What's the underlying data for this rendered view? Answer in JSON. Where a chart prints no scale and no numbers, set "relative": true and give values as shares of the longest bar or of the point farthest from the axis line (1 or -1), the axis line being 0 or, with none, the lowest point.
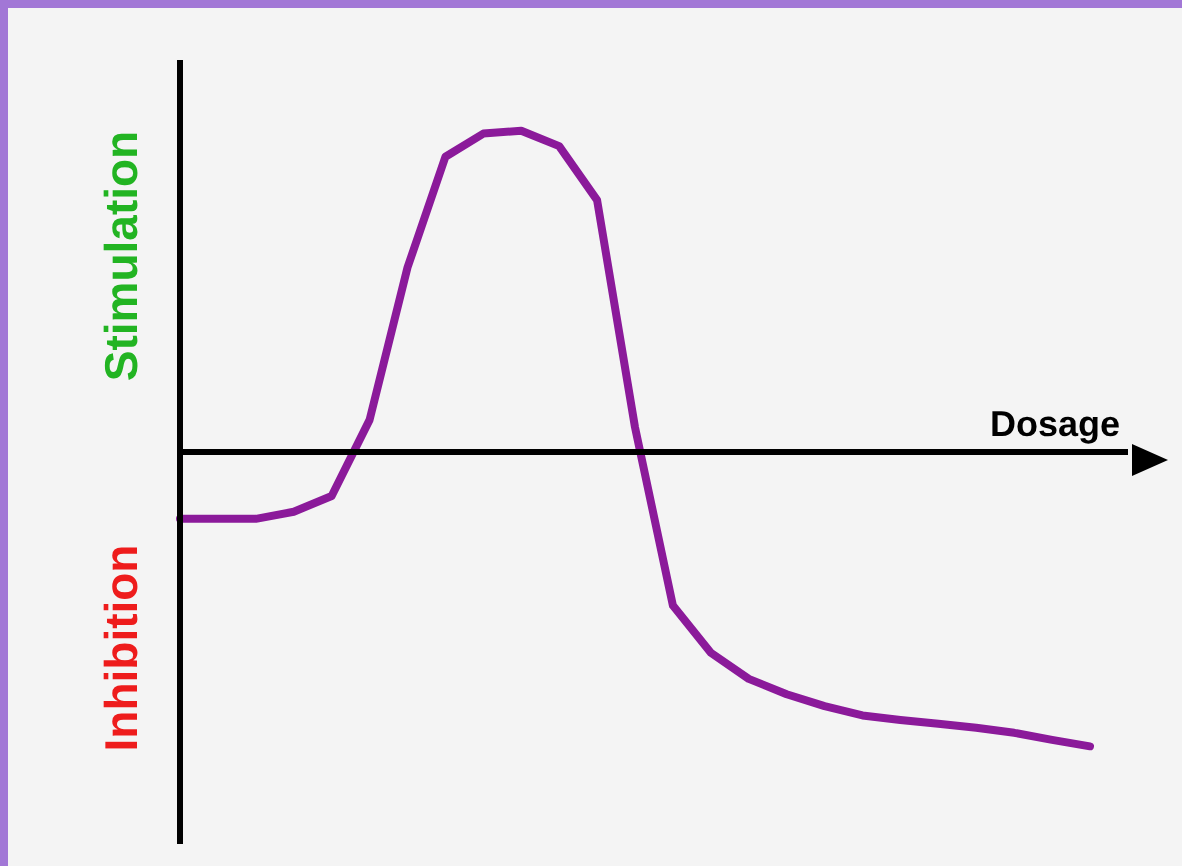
{
  "chart_data": {
    "type": "line",
    "relative": true,
    "xlabel": "Dosage",
    "annotations": [
      "Stimulation",
      "Inhibition"
    ],
    "categories": [
      null,
      null,
      null,
      null,
      null,
      null,
      null,
      null,
      null,
      null,
      null,
      null,
      null,
      null,
      null,
      null,
      null,
      null,
      null,
      null,
      null,
      null,
      null,
      null,
      null
    ],
    "series": [
      {
        "color": "#8b1a9a",
        "values": [
          -0.208,
          -0.208,
          -0.208,
          -0.186,
          -0.137,
          0.1,
          0.574,
          0.919,
          0.991,
          1,
          0.952,
          0.784,
          0.077,
          -0.478,
          -0.625,
          -0.706,
          -0.754,
          -0.791,
          -0.82,
          -0.834,
          -0.846,
          -0.858,
          -0.874,
          -0.896,
          -0.916
        ]
      }
    ],
    "tick_labels": false,
    "grid": false,
    "legend": false,
    "marker": "none",
    "line_style": "solid"
  }
}
